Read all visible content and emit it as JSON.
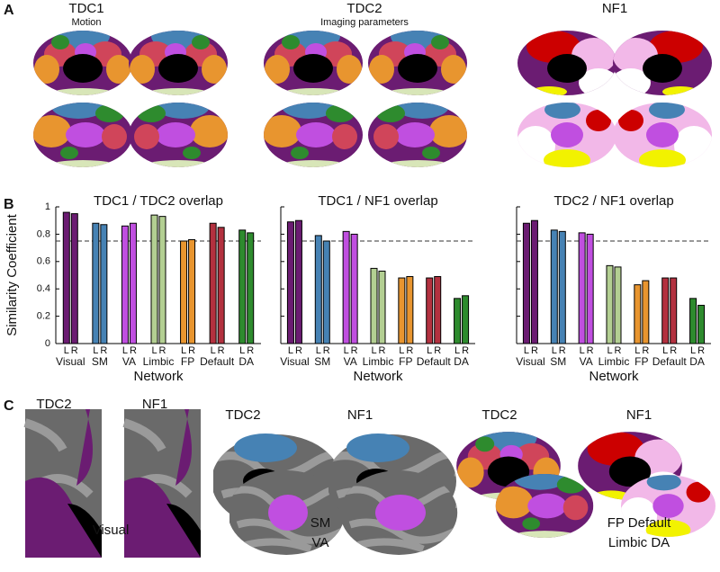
{
  "panels": {
    "a": {
      "label": "A",
      "groups": [
        {
          "title": "TDC1",
          "subtitle": "Motion"
        },
        {
          "title": "TDC2",
          "subtitle": "Imaging parameters"
        },
        {
          "title": "NF1"
        }
      ]
    },
    "b": {
      "label": "B"
    },
    "c": {
      "label": "C",
      "groups": [
        {
          "left": "TDC2",
          "right": "NF1",
          "caption": "Visual"
        },
        {
          "left": "TDC2",
          "right": "NF1",
          "caption_lines": [
            "SM",
            "VA"
          ]
        },
        {
          "left": "TDC2",
          "right": "NF1",
          "caption_lines": [
            "FP Default",
            "Limbic DA"
          ]
        }
      ]
    }
  },
  "chart_data": [
    {
      "type": "bar",
      "title": "TDC1 / TDC2 overlap",
      "ylabel": "Similarity Coefficient",
      "xlabel": "Network",
      "categories": [
        "Visual",
        "SM",
        "VA",
        "Limbic",
        "FP",
        "Default",
        "DA"
      ],
      "colors": [
        "#6b1c72",
        "#4682b4",
        "#c04fe0",
        "#b3cf92",
        "#e8952f",
        "#b3313f",
        "#2e8b2e"
      ],
      "series": [
        {
          "name": "L",
          "values": [
            0.96,
            0.88,
            0.86,
            0.94,
            0.75,
            0.88,
            0.83
          ]
        },
        {
          "name": "R",
          "values": [
            0.95,
            0.87,
            0.88,
            0.93,
            0.76,
            0.85,
            0.81
          ]
        }
      ],
      "ylim": [
        0,
        1
      ],
      "yticks": [
        0,
        0.2,
        0.4,
        0.6,
        0.8,
        1
      ],
      "ytick_labels": true,
      "reference_line": 0.75
    },
    {
      "type": "bar",
      "title": "TDC1 / NF1 overlap",
      "xlabel": "Network",
      "categories": [
        "Visual",
        "SM",
        "VA",
        "Limbic",
        "FP",
        "Default",
        "DA"
      ],
      "colors": [
        "#6b1c72",
        "#4682b4",
        "#c04fe0",
        "#b3cf92",
        "#e8952f",
        "#b3313f",
        "#2e8b2e"
      ],
      "series": [
        {
          "name": "L",
          "values": [
            0.89,
            0.79,
            0.82,
            0.55,
            0.48,
            0.48,
            0.33
          ]
        },
        {
          "name": "R",
          "values": [
            0.9,
            0.75,
            0.8,
            0.53,
            0.49,
            0.49,
            0.35
          ]
        }
      ],
      "ylim": [
        0,
        1
      ],
      "yticks": [
        0,
        0.2,
        0.4,
        0.6,
        0.8,
        1
      ],
      "ytick_labels": false,
      "reference_line": 0.75
    },
    {
      "type": "bar",
      "title": "TDC2 / NF1 overlap",
      "xlabel": "Network",
      "categories": [
        "Visual",
        "SM",
        "VA",
        "Limbic",
        "FP",
        "Default",
        "DA"
      ],
      "colors": [
        "#6b1c72",
        "#4682b4",
        "#c04fe0",
        "#b3cf92",
        "#e8952f",
        "#b3313f",
        "#2e8b2e"
      ],
      "series": [
        {
          "name": "L",
          "values": [
            0.88,
            0.83,
            0.81,
            0.57,
            0.43,
            0.48,
            0.33
          ]
        },
        {
          "name": "R",
          "values": [
            0.9,
            0.82,
            0.8,
            0.56,
            0.46,
            0.48,
            0.28
          ]
        }
      ],
      "ylim": [
        0,
        1
      ],
      "yticks": [
        0,
        0.2,
        0.4,
        0.6,
        0.8,
        1
      ],
      "ytick_labels": false,
      "reference_line": 0.75
    }
  ]
}
